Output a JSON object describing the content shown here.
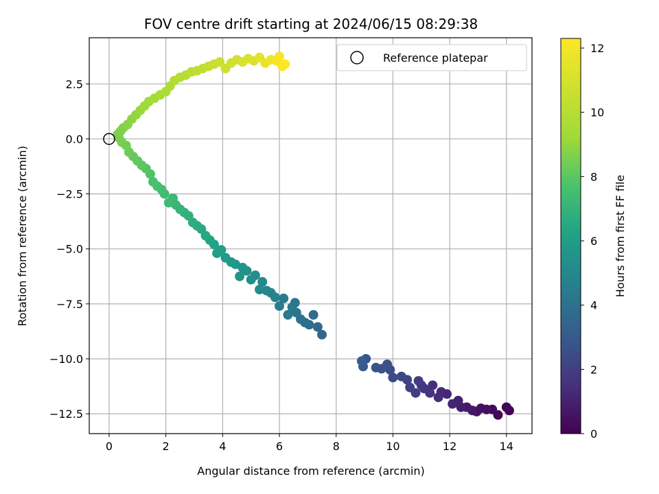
{
  "chart_data": {
    "type": "scatter",
    "title": "FOV centre drift starting at 2024/06/15 08:29:38",
    "xlabel": "Angular distance from reference (arcmin)",
    "ylabel": "Rotation from reference (arcmin)",
    "xlim": [
      -0.7,
      14.9
    ],
    "ylim": [
      -13.4,
      4.6
    ],
    "xticks": [
      0,
      2,
      4,
      6,
      8,
      10,
      12,
      14
    ],
    "yticks": [
      2.5,
      0.0,
      -2.5,
      -5.0,
      -7.5,
      -10.0,
      -12.5
    ],
    "xtick_labels": [
      "0",
      "2",
      "4",
      "6",
      "8",
      "10",
      "12",
      "14"
    ],
    "ytick_labels": [
      "2.5",
      "0.0",
      "−2.5",
      "−5.0",
      "−7.5",
      "−10.0",
      "−12.5"
    ],
    "grid": true,
    "legend": {
      "position": "top-right",
      "entries": [
        "Reference platepar"
      ]
    },
    "reference_point": {
      "x": 0,
      "y": 0
    },
    "colorbar": {
      "label": "Hours from first FF file",
      "range": [
        0,
        12.3
      ],
      "ticks": [
        0,
        2,
        4,
        6,
        8,
        10,
        12
      ],
      "tick_labels": [
        "0",
        "2",
        "4",
        "6",
        "8",
        "10",
        "12"
      ],
      "colormap": "viridis"
    },
    "series": [
      {
        "points": [
          [
            14.1,
            -12.35,
            0.0
          ],
          [
            14.0,
            -12.2,
            0.1
          ],
          [
            13.7,
            -12.55,
            0.2
          ],
          [
            13.5,
            -12.3,
            0.3
          ],
          [
            13.3,
            -12.3,
            0.4
          ],
          [
            13.1,
            -12.25,
            0.5
          ],
          [
            12.95,
            -12.4,
            0.6
          ],
          [
            12.8,
            -12.35,
            0.7
          ],
          [
            12.6,
            -12.2,
            0.8
          ],
          [
            12.4,
            -12.2,
            0.9
          ],
          [
            12.3,
            -11.9,
            1.0
          ],
          [
            12.1,
            -12.05,
            1.1
          ],
          [
            11.9,
            -11.6,
            1.2
          ],
          [
            11.7,
            -11.5,
            1.3
          ],
          [
            11.6,
            -11.75,
            1.4
          ],
          [
            11.4,
            -11.2,
            1.5
          ],
          [
            11.3,
            -11.55,
            1.6
          ],
          [
            11.1,
            -11.35,
            1.7
          ],
          [
            11.0,
            -11.2,
            1.8
          ],
          [
            10.9,
            -11.0,
            1.9
          ],
          [
            10.8,
            -11.55,
            2.0
          ],
          [
            10.6,
            -11.3,
            2.1
          ],
          [
            10.5,
            -10.95,
            2.2
          ],
          [
            10.3,
            -10.8,
            2.3
          ],
          [
            10.0,
            -10.85,
            2.4
          ],
          [
            9.9,
            -10.5,
            2.5
          ],
          [
            9.8,
            -10.25,
            2.6
          ],
          [
            9.6,
            -10.45,
            2.7
          ],
          [
            9.4,
            -10.4,
            2.8
          ],
          [
            9.05,
            -10.0,
            2.9
          ],
          [
            8.95,
            -10.35,
            3.0
          ],
          [
            8.9,
            -10.1,
            3.1
          ],
          [
            7.5,
            -8.9,
            3.5
          ],
          [
            7.35,
            -8.55,
            3.6
          ],
          [
            7.2,
            -8.0,
            3.7
          ],
          [
            7.05,
            -8.45,
            3.8
          ],
          [
            6.9,
            -8.35,
            3.9
          ],
          [
            6.75,
            -8.2,
            4.0
          ],
          [
            6.6,
            -7.9,
            4.1
          ],
          [
            6.55,
            -7.45,
            4.2
          ],
          [
            6.45,
            -7.65,
            4.3
          ],
          [
            6.3,
            -8.0,
            4.4
          ],
          [
            6.15,
            -7.25,
            4.5
          ],
          [
            6.0,
            -7.6,
            4.6
          ],
          [
            5.85,
            -7.2,
            4.7
          ],
          [
            5.7,
            -7.0,
            4.8
          ],
          [
            5.55,
            -6.9,
            4.9
          ],
          [
            5.4,
            -6.5,
            5.0
          ],
          [
            5.3,
            -6.85,
            5.1
          ],
          [
            5.15,
            -6.2,
            5.2
          ],
          [
            5.0,
            -6.4,
            5.3
          ],
          [
            4.85,
            -6.0,
            5.4
          ],
          [
            4.7,
            -5.85,
            5.5
          ],
          [
            4.6,
            -6.25,
            5.6
          ],
          [
            4.45,
            -5.7,
            5.7
          ],
          [
            4.3,
            -5.6,
            5.8
          ],
          [
            4.1,
            -5.4,
            5.9
          ],
          [
            3.95,
            -5.05,
            6.0
          ],
          [
            3.8,
            -5.2,
            6.1
          ],
          [
            3.7,
            -4.8,
            6.2
          ],
          [
            3.55,
            -4.6,
            6.3
          ],
          [
            3.4,
            -4.4,
            6.4
          ],
          [
            3.25,
            -4.1,
            6.5
          ],
          [
            3.1,
            -3.95,
            6.6
          ],
          [
            2.95,
            -3.8,
            6.7
          ],
          [
            2.8,
            -3.5,
            6.8
          ],
          [
            2.65,
            -3.35,
            6.9
          ],
          [
            2.5,
            -3.2,
            7.0
          ],
          [
            2.35,
            -3.0,
            7.1
          ],
          [
            2.25,
            -2.7,
            7.2
          ],
          [
            2.1,
            -2.9,
            7.3
          ],
          [
            1.95,
            -2.5,
            7.4
          ],
          [
            1.85,
            -2.3,
            7.5
          ],
          [
            1.7,
            -2.15,
            7.6
          ],
          [
            1.55,
            -1.95,
            7.7
          ],
          [
            1.45,
            -1.6,
            7.8
          ],
          [
            1.3,
            -1.35,
            7.9
          ],
          [
            1.15,
            -1.2,
            8.0
          ],
          [
            1.0,
            -1.0,
            8.1
          ],
          [
            0.85,
            -0.8,
            8.2
          ],
          [
            0.7,
            -0.6,
            8.3
          ],
          [
            0.6,
            -0.3,
            8.4
          ],
          [
            0.45,
            -0.15,
            8.5
          ],
          [
            0.35,
            0.05,
            8.55
          ],
          [
            0.3,
            0.2,
            8.6
          ],
          [
            0.4,
            0.35,
            8.65
          ],
          [
            0.5,
            0.5,
            8.7
          ],
          [
            0.65,
            0.65,
            8.8
          ],
          [
            0.8,
            0.9,
            8.9
          ],
          [
            0.95,
            1.1,
            9.0
          ],
          [
            1.1,
            1.3,
            9.1
          ],
          [
            1.25,
            1.5,
            9.2
          ],
          [
            1.4,
            1.7,
            9.3
          ],
          [
            1.6,
            1.85,
            9.4
          ],
          [
            1.8,
            2.0,
            9.5
          ],
          [
            2.0,
            2.15,
            9.6
          ],
          [
            2.15,
            2.4,
            9.7
          ],
          [
            2.3,
            2.65,
            9.8
          ],
          [
            2.5,
            2.8,
            9.9
          ],
          [
            2.7,
            2.9,
            10.0
          ],
          [
            2.9,
            3.05,
            10.1
          ],
          [
            3.1,
            3.1,
            10.2
          ],
          [
            3.3,
            3.2,
            10.3
          ],
          [
            3.5,
            3.3,
            10.4
          ],
          [
            3.7,
            3.4,
            10.5
          ],
          [
            3.9,
            3.5,
            10.6
          ],
          [
            4.1,
            3.2,
            10.7
          ],
          [
            4.3,
            3.45,
            10.8
          ],
          [
            4.5,
            3.6,
            10.9
          ],
          [
            4.7,
            3.5,
            11.0
          ],
          [
            4.9,
            3.65,
            11.1
          ],
          [
            5.1,
            3.55,
            11.2
          ],
          [
            5.3,
            3.7,
            11.4
          ],
          [
            5.5,
            3.45,
            11.6
          ],
          [
            5.7,
            3.6,
            11.8
          ],
          [
            5.9,
            3.55,
            12.0
          ],
          [
            6.0,
            3.75,
            12.1
          ],
          [
            6.1,
            3.3,
            12.2
          ],
          [
            6.2,
            3.4,
            12.3
          ]
        ]
      }
    ]
  }
}
